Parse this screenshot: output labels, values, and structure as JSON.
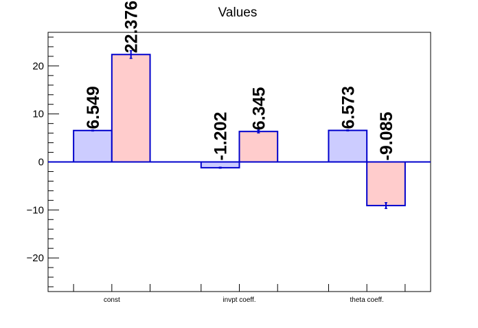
{
  "chart_data": {
    "type": "bar",
    "title": "Values",
    "xlabel": "",
    "ylabel": "",
    "ylim": [
      -27,
      27
    ],
    "yticks": [
      -20,
      -10,
      0,
      10,
      20
    ],
    "categories": [
      "const",
      "invpt coeff.",
      "theta coeff."
    ],
    "series": [
      {
        "color": "#ccccff",
        "values": [
          6.549,
          -1.202,
          6.573
        ],
        "labels": [
          "6.549",
          "-1.202",
          "6.573"
        ],
        "errors": [
          0.1,
          0.1,
          0.1
        ]
      },
      {
        "color": "#ffcccc",
        "values": [
          22.376,
          6.345,
          -9.085
        ],
        "labels": [
          "22.376",
          "6.345",
          "-9.085"
        ],
        "errors": [
          0.8,
          0.3,
          0.6
        ]
      }
    ],
    "bar_edge_color": "#0000cc",
    "zero_line_color": "#0000cc",
    "grid": false,
    "legend": "none"
  }
}
